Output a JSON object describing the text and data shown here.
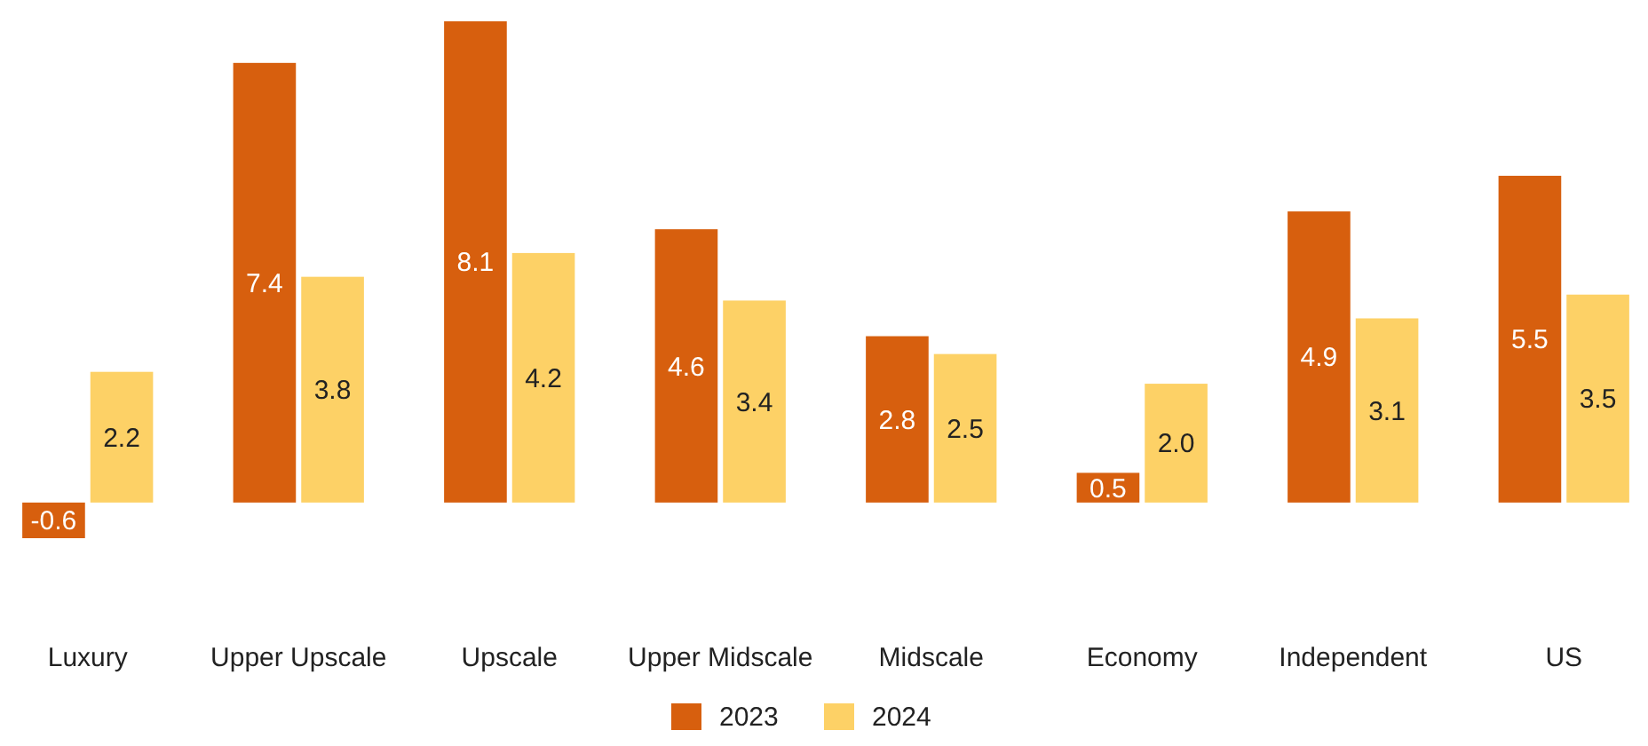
{
  "chart_data": {
    "type": "bar",
    "categories": [
      "Luxury",
      "Upper Upscale",
      "Upscale",
      "Upper Midscale",
      "Midscale",
      "Economy",
      "Independent",
      "US"
    ],
    "series": [
      {
        "name": "2023",
        "color": "#d75f0e",
        "values": [
          -0.6,
          7.4,
          8.1,
          4.6,
          2.8,
          0.5,
          4.9,
          5.5
        ],
        "value_labels": [
          "-0.6",
          "7.4",
          "8.1",
          "4.6",
          "2.8",
          "0.5",
          "4.9",
          "5.5"
        ]
      },
      {
        "name": "2024",
        "color": "#fdd166",
        "values": [
          2.2,
          3.8,
          4.2,
          3.4,
          2.5,
          2.0,
          3.1,
          3.5
        ],
        "value_labels": [
          "2.2",
          "3.8",
          "4.2",
          "3.4",
          "2.5",
          "2.0",
          "3.1",
          "3.5"
        ]
      }
    ],
    "legend": "bottom"
  }
}
